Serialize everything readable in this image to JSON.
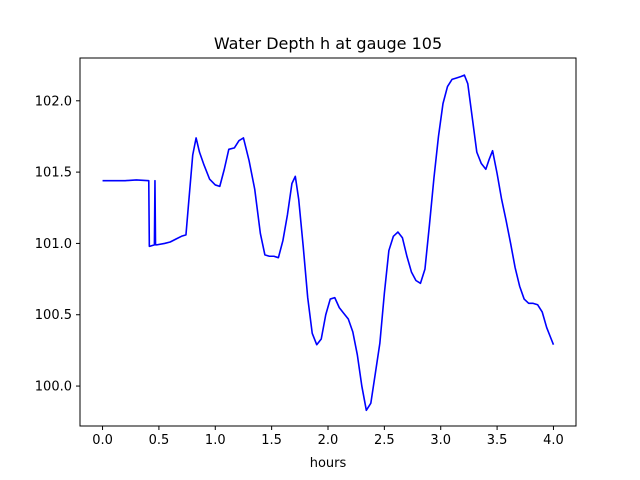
{
  "chart_data": {
    "type": "line",
    "title": "Water Depth h at gauge 105",
    "xlabel": "hours",
    "ylabel": "",
    "xlim": [
      -0.2,
      4.2
    ],
    "ylim": [
      99.72,
      102.3
    ],
    "xticks": [
      0.0,
      0.5,
      1.0,
      1.5,
      2.0,
      2.5,
      3.0,
      3.5,
      4.0
    ],
    "xtick_labels": [
      "0.0",
      "0.5",
      "1.0",
      "1.5",
      "2.0",
      "2.5",
      "3.0",
      "3.5",
      "4.0"
    ],
    "yticks": [
      100.0,
      100.5,
      101.0,
      101.5,
      102.0
    ],
    "ytick_labels": [
      "100.0",
      "100.5",
      "101.0",
      "101.5",
      "102.0"
    ],
    "grid": false,
    "line_color": "#0000ff",
    "series": [
      {
        "name": "",
        "x": [
          0.0,
          0.1,
          0.2,
          0.3,
          0.41,
          0.415,
          0.42,
          0.46,
          0.465,
          0.47,
          0.475,
          0.48,
          0.55,
          0.6,
          0.65,
          0.7,
          0.74,
          0.76,
          0.8,
          0.83,
          0.86,
          0.9,
          0.95,
          1.0,
          1.04,
          1.08,
          1.12,
          1.17,
          1.21,
          1.25,
          1.3,
          1.35,
          1.4,
          1.44,
          1.48,
          1.52,
          1.56,
          1.6,
          1.64,
          1.68,
          1.71,
          1.74,
          1.78,
          1.82,
          1.86,
          1.9,
          1.94,
          1.98,
          2.02,
          2.06,
          2.1,
          2.14,
          2.18,
          2.22,
          2.26,
          2.3,
          2.34,
          2.38,
          2.42,
          2.46,
          2.5,
          2.54,
          2.58,
          2.62,
          2.66,
          2.7,
          2.74,
          2.78,
          2.82,
          2.86,
          2.9,
          2.94,
          2.98,
          3.02,
          3.06,
          3.1,
          3.14,
          3.18,
          3.21,
          3.24,
          3.28,
          3.32,
          3.36,
          3.4,
          3.43,
          3.46,
          3.5,
          3.54,
          3.58,
          3.62,
          3.66,
          3.7,
          3.74,
          3.78,
          3.82,
          3.86,
          3.9,
          3.94,
          3.97,
          4.0
        ],
        "y": [
          101.44,
          101.44,
          101.44,
          101.445,
          101.44,
          100.98,
          100.98,
          100.99,
          101.44,
          100.99,
          100.99,
          100.99,
          101.0,
          101.01,
          101.03,
          101.05,
          101.06,
          101.25,
          101.62,
          101.74,
          101.64,
          101.55,
          101.45,
          101.41,
          101.4,
          101.52,
          101.66,
          101.67,
          101.72,
          101.74,
          101.58,
          101.38,
          101.07,
          100.92,
          100.91,
          100.91,
          100.9,
          101.02,
          101.2,
          101.42,
          101.47,
          101.31,
          100.98,
          100.62,
          100.37,
          100.29,
          100.33,
          100.5,
          100.61,
          100.62,
          100.55,
          100.51,
          100.47,
          100.38,
          100.22,
          100.0,
          99.83,
          99.88,
          100.09,
          100.3,
          100.65,
          100.95,
          101.05,
          101.08,
          101.04,
          100.91,
          100.8,
          100.74,
          100.72,
          100.82,
          101.13,
          101.46,
          101.75,
          101.98,
          102.1,
          102.15,
          102.16,
          102.17,
          102.18,
          102.12,
          101.88,
          101.64,
          101.56,
          101.52,
          101.59,
          101.65,
          101.49,
          101.31,
          101.16,
          101.0,
          100.83,
          100.7,
          100.61,
          100.58,
          100.58,
          100.57,
          100.52,
          100.41,
          100.35,
          100.29
        ]
      }
    ]
  }
}
